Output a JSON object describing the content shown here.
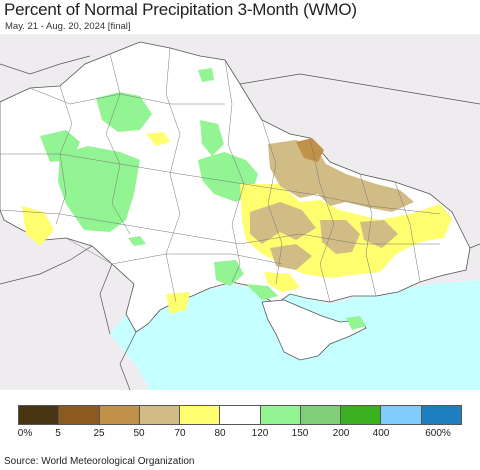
{
  "title": "Percent of Normal Precipitation 3-Month (WMO)",
  "subtitle": "May. 21 - Aug. 20, 2024 [final]",
  "legend": {
    "colors": [
      "#4a3512",
      "#8b5a1e",
      "#c19049",
      "#d2bc85",
      "#fefe6e",
      "#ffffff",
      "#93f493",
      "#7fcf79",
      "#3bb01e",
      "#7fcbfc",
      "#1e7fc1"
    ],
    "labels": [
      "0%",
      "5",
      "25",
      "50",
      "70",
      "80",
      "120",
      "150",
      "200",
      "400",
      "600%"
    ]
  },
  "source": "Source: World Meteorological Organization",
  "colors": {
    "outside": "#efecef",
    "sea": "#c5ffff",
    "land": "#ffffff",
    "border": "#555555"
  }
}
